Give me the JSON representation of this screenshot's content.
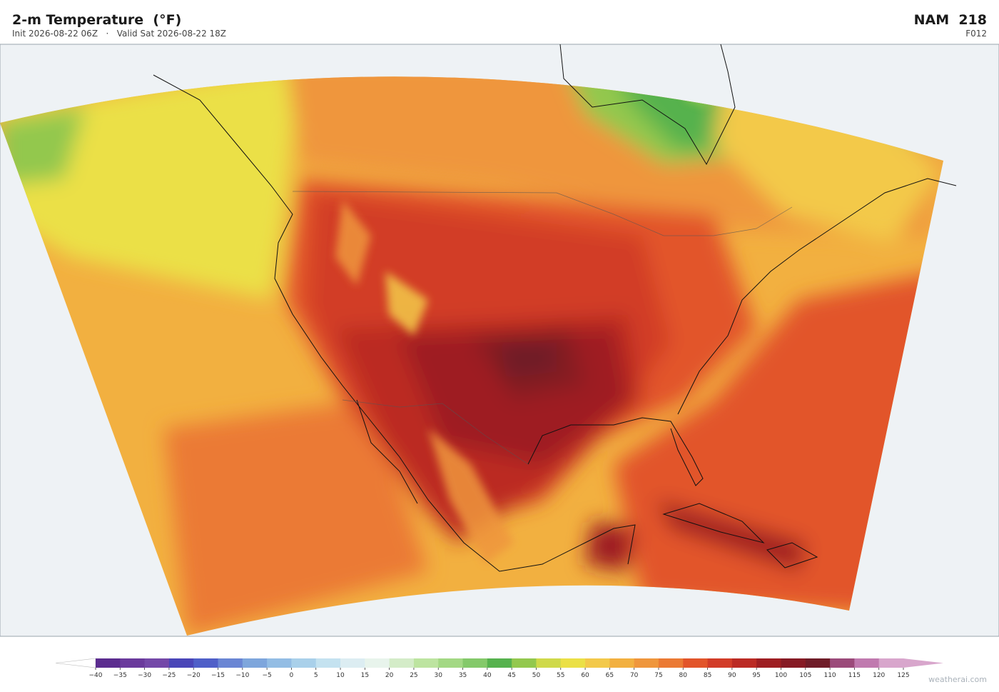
{
  "header": {
    "title": "2-m Temperature  (°F)",
    "subtitle": "Init 2026-08-22 06Z   ·   Valid Sat 2026-08-22 18Z",
    "model": "NAM  218",
    "forecast_hour": "F012"
  },
  "colorbar": {
    "ticks": [
      {
        "value": -40,
        "label": "−40"
      },
      {
        "value": -35,
        "label": "−35"
      },
      {
        "value": -30,
        "label": "−30"
      },
      {
        "value": -25,
        "label": "−25"
      },
      {
        "value": -20,
        "label": "−20"
      },
      {
        "value": -15,
        "label": "−15"
      },
      {
        "value": -10,
        "label": "−10"
      },
      {
        "value": -5,
        "label": "−5"
      },
      0,
      5,
      10,
      15,
      20,
      25,
      30,
      35,
      40,
      45,
      50,
      55,
      60,
      65,
      70,
      75,
      80,
      85,
      90,
      95,
      100,
      105,
      110,
      115,
      120,
      125
    ],
    "colors": [
      "#5b2c8f",
      "#6a3a9c",
      "#7448a8",
      "#4a46b8",
      "#4f5fc8",
      "#6a86d4",
      "#7ea6dc",
      "#93bde4",
      "#a9d0ea",
      "#c4e2f0",
      "#dcedf2",
      "#e8f4ec",
      "#d4ecc8",
      "#bde4a0",
      "#a3d884",
      "#84c96a",
      "#56b24e",
      "#93c84e",
      "#cfd94a",
      "#ebe046",
      "#f3c94a",
      "#f2b040",
      "#ef963c",
      "#eb7a34",
      "#e2552a",
      "#d23c28",
      "#bb2a24",
      "#9e1e22",
      "#861a24",
      "#6f1c28",
      "#9b4a7a",
      "#c07aaf",
      "#d8a6cc"
    ],
    "under_color": "#ffffff",
    "over_color": "#d8a6cc"
  },
  "footer": {
    "watermark": "weatherai.com"
  }
}
